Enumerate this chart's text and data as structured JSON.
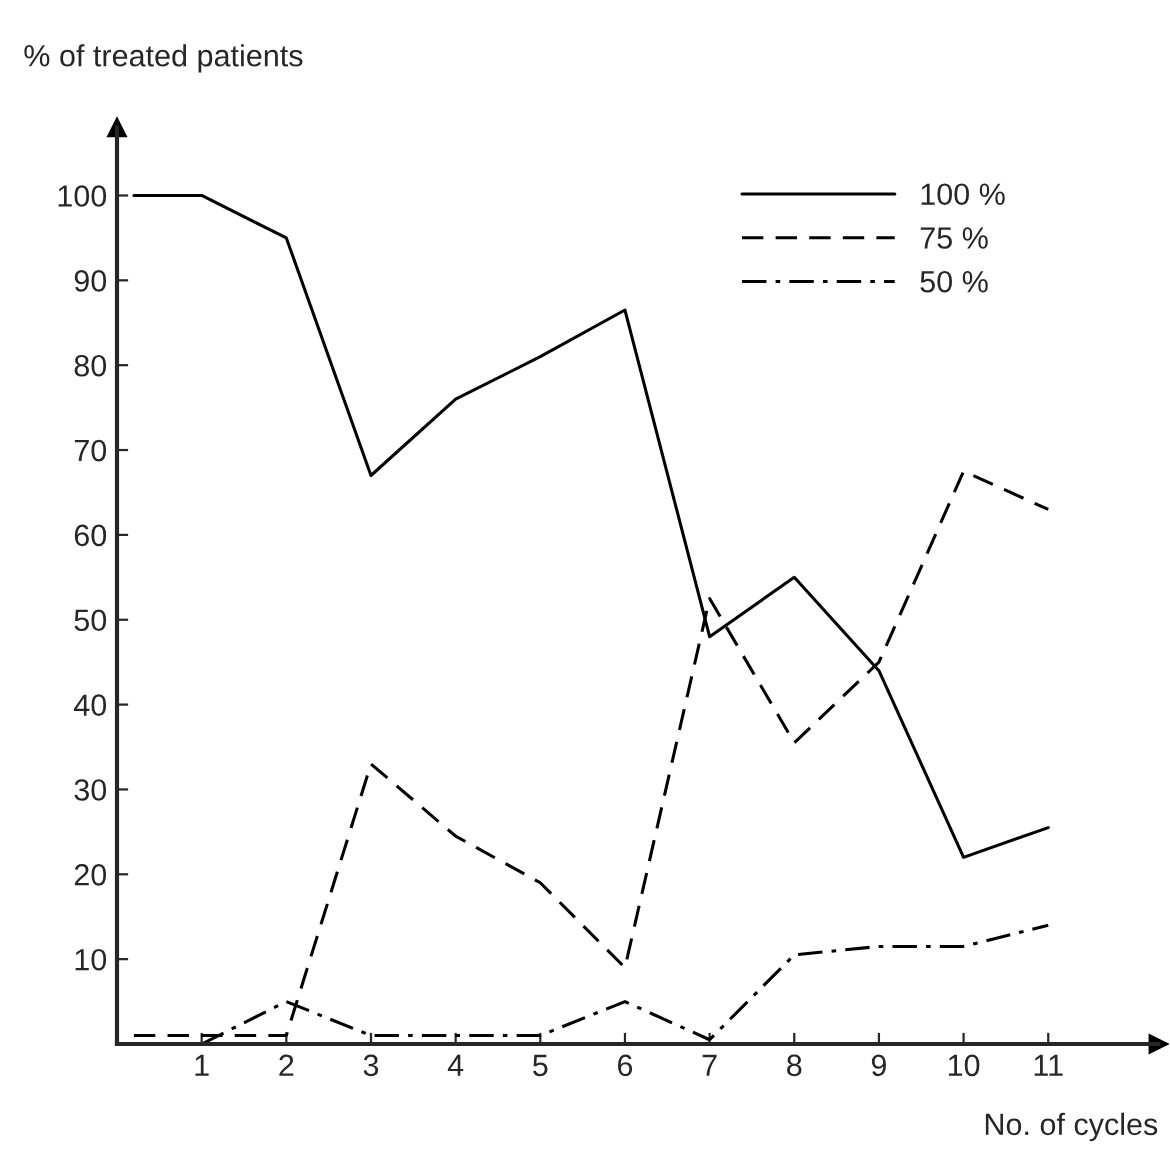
{
  "chart_data": {
    "type": "line",
    "xlabel": "No. of cycles",
    "ylabel": "% of treated patients",
    "xlim": [
      0,
      12.3
    ],
    "ylim": [
      0,
      108
    ],
    "xticks": [
      1,
      2,
      3,
      4,
      5,
      6,
      7,
      8,
      9,
      10,
      11
    ],
    "yticks": [
      10,
      20,
      30,
      40,
      50,
      60,
      70,
      80,
      90,
      100
    ],
    "grid": false,
    "legend": "top right",
    "marker": "none",
    "series": [
      {
        "name": "100 %",
        "color": "#000000",
        "line_style": "solid",
        "x": [
          0.2,
          1,
          2,
          3,
          4,
          5,
          6,
          7,
          8,
          9,
          10,
          11
        ],
        "values": [
          100,
          100,
          95,
          67,
          76,
          81,
          86.5,
          48,
          55,
          44,
          22,
          25.5
        ]
      },
      {
        "name": "75 %",
        "color": "#000000",
        "line_style": "dashed",
        "x": [
          0.2,
          2,
          3,
          4,
          5,
          6,
          7,
          8,
          9,
          10,
          11
        ],
        "values": [
          1,
          1,
          33,
          24.5,
          19,
          9,
          52.5,
          35.5,
          45,
          67.5,
          63
        ]
      },
      {
        "name": "50 %",
        "color": "#000000",
        "line_style": "dashdot",
        "x": [
          1,
          2,
          3,
          4,
          5,
          6,
          7,
          8,
          9,
          10,
          11
        ],
        "values": [
          0,
          5,
          1,
          1,
          1,
          5,
          0.5,
          10.5,
          11.5,
          11.5,
          14
        ]
      }
    ]
  }
}
